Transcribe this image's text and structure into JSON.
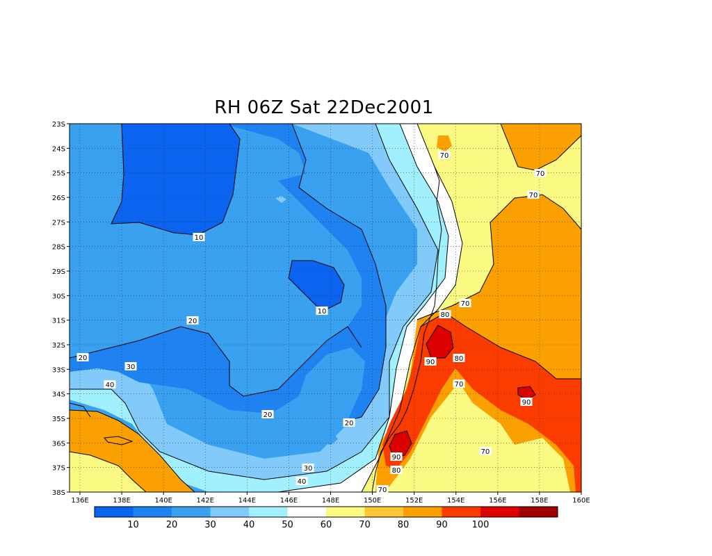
{
  "title": "RH 06Z Sat 22Dec2001",
  "map": {
    "lon_range": [
      135.5,
      160
    ],
    "lat_range": [
      -38,
      -23
    ],
    "lon_ticks": [
      "136E",
      "138E",
      "140E",
      "142E",
      "144E",
      "146E",
      "148E",
      "150E",
      "152E",
      "154E",
      "156E",
      "158E",
      "160E"
    ],
    "lat_ticks": [
      "23S",
      "24S",
      "25S",
      "26S",
      "27S",
      "28S",
      "29S",
      "30S",
      "31S",
      "32S",
      "33S",
      "34S",
      "35S",
      "36S",
      "37S",
      "38S"
    ],
    "grid": true,
    "contour_labels": [
      "10",
      "10",
      "20",
      "20",
      "20",
      "20",
      "30",
      "40",
      "30",
      "40",
      "70",
      "70",
      "70",
      "70",
      "70",
      "70",
      "70",
      "80",
      "80",
      "80",
      "90",
      "90",
      "90"
    ]
  },
  "colorbar": {
    "colors": [
      "#0a64f0",
      "#1e82f0",
      "#3aa0f0",
      "#82cafa",
      "#a0f0ff",
      "#ffffff",
      "#fafa82",
      "#fac837",
      "#faa000",
      "#fa3c00",
      "#dc0000",
      "#a00000"
    ],
    "labels": [
      "10",
      "20",
      "30",
      "40",
      "50",
      "60",
      "70",
      "80",
      "90",
      "100"
    ]
  }
}
